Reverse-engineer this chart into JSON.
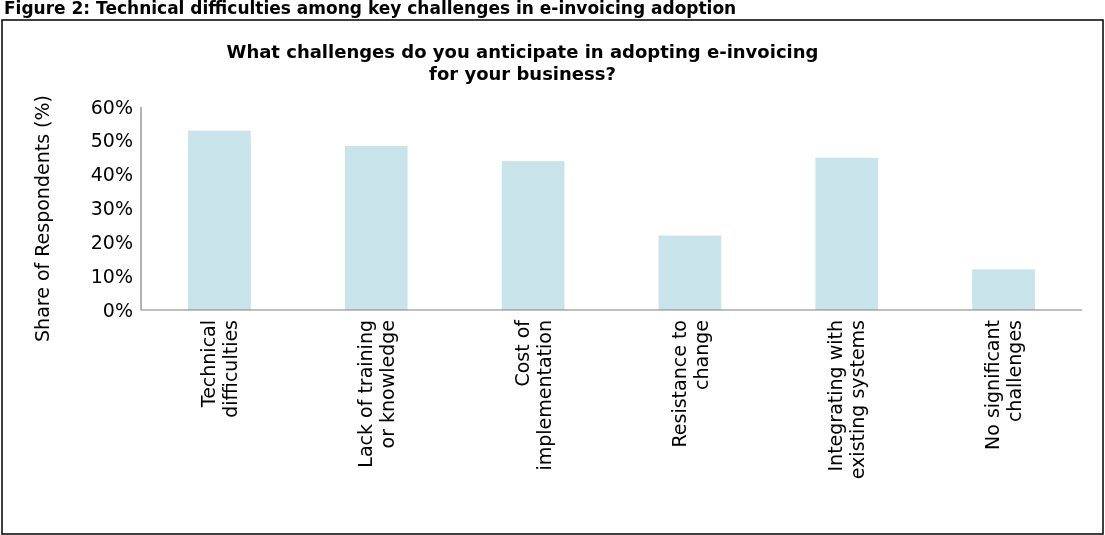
{
  "chart_data": {
    "type": "bar",
    "title": "What challenges do you anticipate in adopting e-invoicing for your business?",
    "annotations": [
      "Figure 2: Technical difficulties among key challenges in e-invoicing adoption"
    ],
    "ylabel": "Share of Respondents (%)",
    "categories": [
      "Technical difficulties",
      "Lack of training or knowledge",
      "Cost of implementation",
      "Resistance to change",
      "Integrating with existing systems",
      "No significant challenges"
    ],
    "values": [
      53,
      48.5,
      44,
      22,
      45,
      12
    ],
    "color": "#c8e4ea",
    "ylim": [
      0,
      60
    ],
    "yticks": [
      {
        "value": 0,
        "label": "0%"
      },
      {
        "value": 10,
        "label": "10%"
      },
      {
        "value": 20,
        "label": "20%"
      },
      {
        "value": 30,
        "label": "30%"
      },
      {
        "value": 40,
        "label": "40%"
      },
      {
        "value": 50,
        "label": "50%"
      },
      {
        "value": 60,
        "label": "60%"
      }
    ],
    "grid": false
  }
}
